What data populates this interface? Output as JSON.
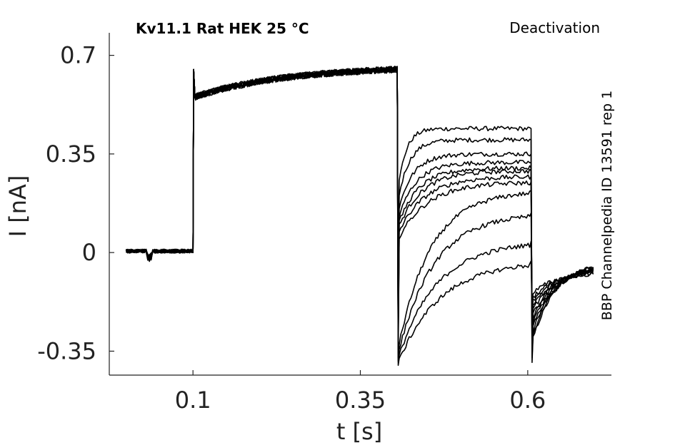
{
  "chart_data": {
    "type": "line",
    "title": "Kv11.1  Rat  HEK  25 °C",
    "protocol_label": "Deactivation",
    "side_label": "BBP Channelpedia ID 13591 rep 1",
    "xlabel": "t [s]",
    "ylabel": "I [nA]",
    "xlim": [
      -0.025,
      0.725
    ],
    "ylim": [
      -0.435,
      0.78
    ],
    "xticks": [
      0.1,
      0.35,
      0.6
    ],
    "xtick_labels": [
      "0.1",
      "0.35",
      "0.6"
    ],
    "yticks": [
      -0.35,
      0,
      0.35,
      0.7
    ],
    "ytick_labels": [
      "-0.35",
      "0",
      "0.35",
      "0.7"
    ],
    "grid": false,
    "protocol": {
      "baseline_end": 0.1,
      "activation_end": 0.405,
      "test_end": 0.605,
      "record_end": 0.7,
      "activation_start_current": 0.55,
      "activation_end_current": 0.65,
      "tail_currents": [
        0.44,
        0.4,
        0.35,
        0.32,
        0.3,
        0.29,
        0.27,
        0.25,
        0.22,
        0.14,
        0.04,
        -0.03
      ]
    }
  }
}
